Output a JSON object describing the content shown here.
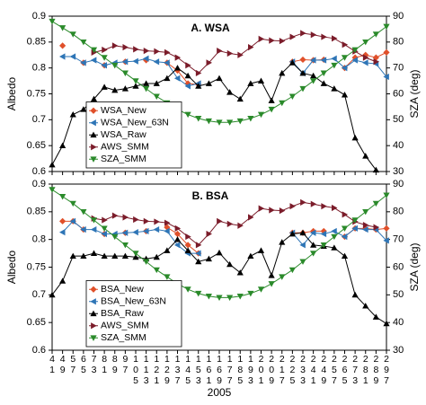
{
  "chart_data": [
    {
      "type": "line",
      "title": "A. WSA",
      "ylabel": "Albedo",
      "y2label": "SZA (deg)",
      "ylim": [
        0.6,
        0.9
      ],
      "yticks": [
        0.6,
        0.65,
        0.7,
        0.75,
        0.8,
        0.85,
        0.9
      ],
      "y2lim": [
        30,
        90
      ],
      "y2ticks": [
        30,
        40,
        50,
        60,
        70,
        80,
        90
      ],
      "grid": false,
      "legend": "lower left",
      "series": [
        {
          "name": "WSA_New",
          "color": "#e0502a",
          "marker": "diamond",
          "values": [
            null,
            0.843,
            null,
            0.81,
            null,
            0.805,
            null,
            0.812,
            null,
            0.815,
            null,
            0.81,
            0.795,
            0.77,
            0.768,
            null,
            null,
            null,
            null,
            null,
            null,
            null,
            null,
            0.812,
            0.816,
            0.815,
            0.816,
            null,
            0.8,
            0.82,
            0.825,
            0.82,
            0.83
          ]
        },
        {
          "name": "WSA_New_63N",
          "color": "#2e75b6",
          "marker": "triangle-left",
          "values": [
            null,
            0.822,
            0.822,
            0.81,
            0.815,
            0.805,
            0.81,
            0.812,
            0.813,
            0.818,
            0.812,
            0.81,
            0.78,
            0.765,
            0.77,
            null,
            null,
            null,
            null,
            null,
            null,
            null,
            null,
            0.812,
            0.79,
            0.815,
            0.815,
            0.818,
            0.8,
            0.815,
            0.81,
            0.808,
            0.783
          ]
        },
        {
          "name": "WSA_Raw",
          "color": "#000000",
          "marker": "triangle-up",
          "values": [
            0.613,
            0.65,
            0.71,
            0.72,
            0.74,
            0.763,
            0.757,
            0.76,
            0.765,
            0.77,
            0.77,
            0.78,
            0.8,
            0.785,
            0.765,
            0.77,
            0.78,
            0.753,
            0.74,
            0.77,
            0.775,
            0.737,
            0.79,
            0.81,
            0.79,
            0.785,
            0.77,
            0.76,
            0.748,
            0.665,
            0.63,
            0.603,
            null
          ]
        },
        {
          "name": "AWS_SMM",
          "color": "#7b1c2a",
          "marker": "triangle-right",
          "values": [
            null,
            null,
            null,
            null,
            0.83,
            0.835,
            0.843,
            0.84,
            0.836,
            0.833,
            0.832,
            0.83,
            0.82,
            0.805,
            0.79,
            0.81,
            0.833,
            0.828,
            0.825,
            0.84,
            0.856,
            0.853,
            0.852,
            0.86,
            0.867,
            0.864,
            0.86,
            0.857,
            0.845,
            0.832,
            0.82,
            0.812,
            null
          ]
        },
        {
          "name": "SZA_SMM",
          "color": "#2a8a2a",
          "marker": "triangle-down",
          "axis": "y2",
          "values": [
            88,
            85.5,
            83,
            80,
            77,
            74,
            71,
            68,
            65,
            62,
            59,
            56.5,
            54,
            52,
            50.5,
            49.5,
            49,
            49,
            49.5,
            50.5,
            52,
            54,
            56.5,
            59,
            62,
            65,
            68,
            71,
            74,
            77,
            80,
            83,
            86
          ]
        }
      ]
    },
    {
      "type": "line",
      "title": "B. BSA",
      "ylabel": "Albedo",
      "y2label": "SZA (deg)",
      "xlabel": "2005",
      "categories": [
        "41",
        "49",
        "57",
        "65",
        "73",
        "81",
        "89",
        "97",
        "105",
        "113",
        "121",
        "129",
        "137",
        "145",
        "153",
        "161",
        "169",
        "177",
        "185",
        "193",
        "201",
        "209",
        "217",
        "225",
        "233",
        "241",
        "249",
        "257",
        "265",
        "273",
        "281",
        "289",
        "297"
      ],
      "ylim": [
        0.6,
        0.9
      ],
      "yticks": [
        0.6,
        0.65,
        0.7,
        0.75,
        0.8,
        0.85,
        0.9
      ],
      "y2lim": [
        30,
        90
      ],
      "y2ticks": [
        30,
        40,
        50,
        60,
        70,
        80,
        90
      ],
      "grid": false,
      "legend": "lower left",
      "series": [
        {
          "name": "BSA_New",
          "color": "#e0502a",
          "marker": "diamond",
          "values": [
            null,
            0.833,
            0.833,
            0.818,
            null,
            0.81,
            null,
            0.812,
            null,
            0.815,
            null,
            0.822,
            0.81,
            0.79,
            0.775,
            null,
            null,
            null,
            null,
            null,
            null,
            null,
            null,
            0.812,
            0.812,
            0.815,
            0.815,
            null,
            0.805,
            0.82,
            0.82,
            0.818,
            0.82
          ]
        },
        {
          "name": "BSA_New_63N",
          "color": "#2e75b6",
          "marker": "triangle-left",
          "values": [
            null,
            0.813,
            0.833,
            0.818,
            0.818,
            0.81,
            0.81,
            0.812,
            0.813,
            0.815,
            0.818,
            0.815,
            0.79,
            0.775,
            0.775,
            null,
            null,
            null,
            null,
            null,
            null,
            null,
            null,
            0.812,
            0.79,
            0.812,
            0.81,
            0.815,
            0.805,
            0.82,
            0.818,
            0.818,
            0.798
          ]
        },
        {
          "name": "BSA_Raw",
          "color": "#000000",
          "marker": "triangle-up",
          "values": [
            0.7,
            0.725,
            0.77,
            0.77,
            0.775,
            0.77,
            0.77,
            0.77,
            0.768,
            0.765,
            0.768,
            0.78,
            0.8,
            0.78,
            0.76,
            0.765,
            0.776,
            0.755,
            0.74,
            0.77,
            0.78,
            0.735,
            0.795,
            0.81,
            0.812,
            0.79,
            0.788,
            0.785,
            0.77,
            0.7,
            0.68,
            0.66,
            0.648
          ]
        },
        {
          "name": "AWS_SMM",
          "color": "#7b1c2a",
          "marker": "triangle-right",
          "values": [
            null,
            null,
            null,
            null,
            0.838,
            0.835,
            0.843,
            0.84,
            0.836,
            0.833,
            0.832,
            0.83,
            0.82,
            0.805,
            0.79,
            0.81,
            0.833,
            0.828,
            0.825,
            0.84,
            0.856,
            0.853,
            0.852,
            0.86,
            0.867,
            0.864,
            0.86,
            0.857,
            0.845,
            0.832,
            0.826,
            0.822,
            null
          ]
        },
        {
          "name": "SZA_SMM",
          "color": "#2a8a2a",
          "marker": "triangle-down",
          "axis": "y2",
          "values": [
            88,
            85.5,
            83,
            80,
            77,
            74,
            71,
            68,
            65,
            62,
            59,
            56.5,
            54,
            52,
            50.5,
            49.5,
            49,
            49,
            49.5,
            50.5,
            52,
            54,
            56.5,
            59,
            62,
            65,
            68,
            71,
            74,
            77,
            80,
            83,
            86
          ]
        }
      ]
    }
  ]
}
